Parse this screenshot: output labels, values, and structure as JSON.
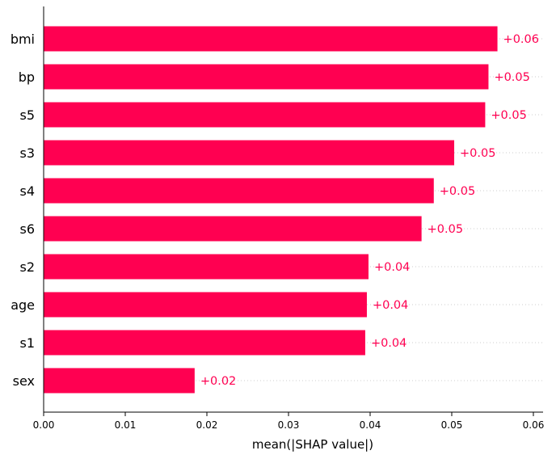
{
  "chart_data": {
    "type": "bar",
    "orientation": "horizontal",
    "categories": [
      "bmi",
      "bp",
      "s5",
      "s3",
      "s4",
      "s6",
      "s2",
      "age",
      "s1",
      "sex"
    ],
    "values": [
      0.0556,
      0.0545,
      0.0541,
      0.0503,
      0.0478,
      0.0463,
      0.0398,
      0.0396,
      0.0394,
      0.0185
    ],
    "value_labels": [
      "+0.06",
      "+0.05",
      "+0.05",
      "+0.05",
      "+0.05",
      "+0.05",
      "+0.04",
      "+0.04",
      "+0.04",
      "+0.02"
    ],
    "xlabel": "mean(|SHAP value|)",
    "ylabel": "",
    "title": "",
    "xlim": [
      0,
      0.06
    ],
    "xticks": [
      "0.00",
      "0.01",
      "0.02",
      "0.03",
      "0.04",
      "0.05",
      "0.06"
    ],
    "grid": "dotted horizontal guide lines per bar",
    "bar_color": "#ff0051",
    "label_color": "#ff0051",
    "guide_color": "#cccccc"
  }
}
